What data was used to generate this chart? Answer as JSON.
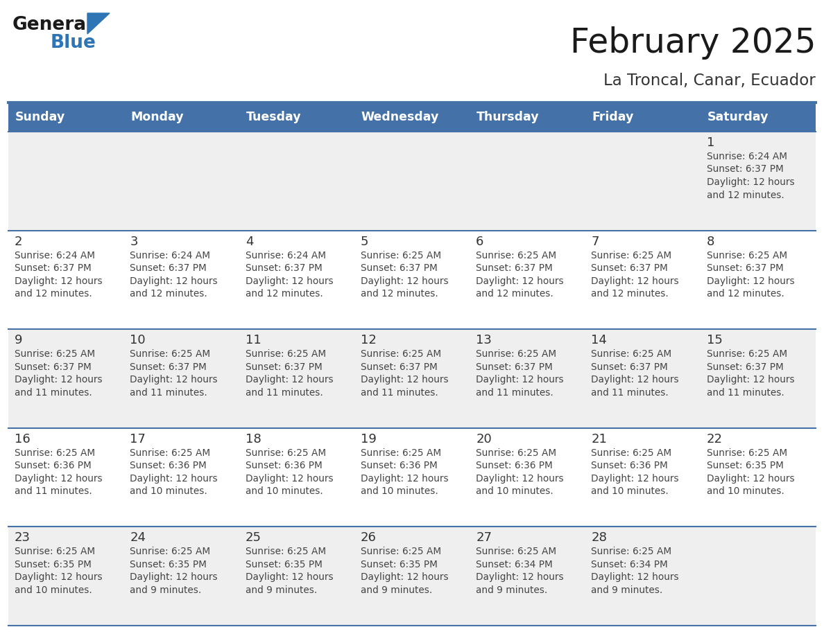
{
  "title": "February 2025",
  "subtitle": "La Troncal, Canar, Ecuador",
  "days_of_week": [
    "Sunday",
    "Monday",
    "Tuesday",
    "Wednesday",
    "Thursday",
    "Friday",
    "Saturday"
  ],
  "header_bg": "#4472A8",
  "header_text": "#FFFFFF",
  "row_bg_light": "#EFEFEF",
  "row_bg_white": "#FFFFFF",
  "border_color": "#4472A8",
  "sep_color": "#4472A8",
  "day_num_color": "#333333",
  "info_color": "#444444",
  "title_color": "#1a1a1a",
  "subtitle_color": "#333333",
  "logo_general_color": "#1a1a1a",
  "logo_blue_color": "#2E75B6",
  "calendar_data": [
    [
      null,
      null,
      null,
      null,
      null,
      null,
      {
        "day": 1,
        "sunrise": "6:24 AM",
        "sunset": "6:37 PM",
        "daylight_line1": "Daylight: 12 hours",
        "daylight_line2": "and 12 minutes."
      }
    ],
    [
      {
        "day": 2,
        "sunrise": "6:24 AM",
        "sunset": "6:37 PM",
        "daylight_line1": "Daylight: 12 hours",
        "daylight_line2": "and 12 minutes."
      },
      {
        "day": 3,
        "sunrise": "6:24 AM",
        "sunset": "6:37 PM",
        "daylight_line1": "Daylight: 12 hours",
        "daylight_line2": "and 12 minutes."
      },
      {
        "day": 4,
        "sunrise": "6:24 AM",
        "sunset": "6:37 PM",
        "daylight_line1": "Daylight: 12 hours",
        "daylight_line2": "and 12 minutes."
      },
      {
        "day": 5,
        "sunrise": "6:25 AM",
        "sunset": "6:37 PM",
        "daylight_line1": "Daylight: 12 hours",
        "daylight_line2": "and 12 minutes."
      },
      {
        "day": 6,
        "sunrise": "6:25 AM",
        "sunset": "6:37 PM",
        "daylight_line1": "Daylight: 12 hours",
        "daylight_line2": "and 12 minutes."
      },
      {
        "day": 7,
        "sunrise": "6:25 AM",
        "sunset": "6:37 PM",
        "daylight_line1": "Daylight: 12 hours",
        "daylight_line2": "and 12 minutes."
      },
      {
        "day": 8,
        "sunrise": "6:25 AM",
        "sunset": "6:37 PM",
        "daylight_line1": "Daylight: 12 hours",
        "daylight_line2": "and 12 minutes."
      }
    ],
    [
      {
        "day": 9,
        "sunrise": "6:25 AM",
        "sunset": "6:37 PM",
        "daylight_line1": "Daylight: 12 hours",
        "daylight_line2": "and 11 minutes."
      },
      {
        "day": 10,
        "sunrise": "6:25 AM",
        "sunset": "6:37 PM",
        "daylight_line1": "Daylight: 12 hours",
        "daylight_line2": "and 11 minutes."
      },
      {
        "day": 11,
        "sunrise": "6:25 AM",
        "sunset": "6:37 PM",
        "daylight_line1": "Daylight: 12 hours",
        "daylight_line2": "and 11 minutes."
      },
      {
        "day": 12,
        "sunrise": "6:25 AM",
        "sunset": "6:37 PM",
        "daylight_line1": "Daylight: 12 hours",
        "daylight_line2": "and 11 minutes."
      },
      {
        "day": 13,
        "sunrise": "6:25 AM",
        "sunset": "6:37 PM",
        "daylight_line1": "Daylight: 12 hours",
        "daylight_line2": "and 11 minutes."
      },
      {
        "day": 14,
        "sunrise": "6:25 AM",
        "sunset": "6:37 PM",
        "daylight_line1": "Daylight: 12 hours",
        "daylight_line2": "and 11 minutes."
      },
      {
        "day": 15,
        "sunrise": "6:25 AM",
        "sunset": "6:37 PM",
        "daylight_line1": "Daylight: 12 hours",
        "daylight_line2": "and 11 minutes."
      }
    ],
    [
      {
        "day": 16,
        "sunrise": "6:25 AM",
        "sunset": "6:36 PM",
        "daylight_line1": "Daylight: 12 hours",
        "daylight_line2": "and 11 minutes."
      },
      {
        "day": 17,
        "sunrise": "6:25 AM",
        "sunset": "6:36 PM",
        "daylight_line1": "Daylight: 12 hours",
        "daylight_line2": "and 10 minutes."
      },
      {
        "day": 18,
        "sunrise": "6:25 AM",
        "sunset": "6:36 PM",
        "daylight_line1": "Daylight: 12 hours",
        "daylight_line2": "and 10 minutes."
      },
      {
        "day": 19,
        "sunrise": "6:25 AM",
        "sunset": "6:36 PM",
        "daylight_line1": "Daylight: 12 hours",
        "daylight_line2": "and 10 minutes."
      },
      {
        "day": 20,
        "sunrise": "6:25 AM",
        "sunset": "6:36 PM",
        "daylight_line1": "Daylight: 12 hours",
        "daylight_line2": "and 10 minutes."
      },
      {
        "day": 21,
        "sunrise": "6:25 AM",
        "sunset": "6:36 PM",
        "daylight_line1": "Daylight: 12 hours",
        "daylight_line2": "and 10 minutes."
      },
      {
        "day": 22,
        "sunrise": "6:25 AM",
        "sunset": "6:35 PM",
        "daylight_line1": "Daylight: 12 hours",
        "daylight_line2": "and 10 minutes."
      }
    ],
    [
      {
        "day": 23,
        "sunrise": "6:25 AM",
        "sunset": "6:35 PM",
        "daylight_line1": "Daylight: 12 hours",
        "daylight_line2": "and 10 minutes."
      },
      {
        "day": 24,
        "sunrise": "6:25 AM",
        "sunset": "6:35 PM",
        "daylight_line1": "Daylight: 12 hours",
        "daylight_line2": "and 9 minutes."
      },
      {
        "day": 25,
        "sunrise": "6:25 AM",
        "sunset": "6:35 PM",
        "daylight_line1": "Daylight: 12 hours",
        "daylight_line2": "and 9 minutes."
      },
      {
        "day": 26,
        "sunrise": "6:25 AM",
        "sunset": "6:35 PM",
        "daylight_line1": "Daylight: 12 hours",
        "daylight_line2": "and 9 minutes."
      },
      {
        "day": 27,
        "sunrise": "6:25 AM",
        "sunset": "6:34 PM",
        "daylight_line1": "Daylight: 12 hours",
        "daylight_line2": "and 9 minutes."
      },
      {
        "day": 28,
        "sunrise": "6:25 AM",
        "sunset": "6:34 PM",
        "daylight_line1": "Daylight: 12 hours",
        "daylight_line2": "and 9 minutes."
      },
      null
    ]
  ]
}
